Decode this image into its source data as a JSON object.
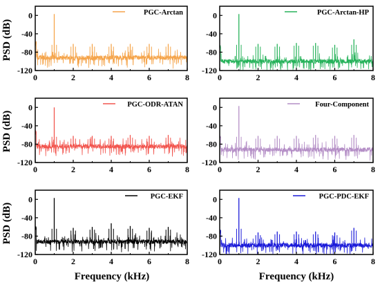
{
  "figure": {
    "ylabel": "PSD (dB)",
    "xlabel": "Frequency (kHz)"
  },
  "chart_data": [
    {
      "type": "line",
      "series": [
        {
          "name": "PGC-Arctan",
          "color": "#f5a44a"
        }
      ],
      "xlim": [
        0,
        8
      ],
      "ylim": [
        -120,
        20
      ],
      "xticks": [
        0,
        2,
        4,
        6,
        8
      ],
      "yticks": [
        0,
        -40,
        -80,
        -120
      ],
      "noise_floor": -92,
      "peaks": [
        {
          "x": 1,
          "y": 3
        },
        {
          "x": 2,
          "y": -62
        },
        {
          "x": 3,
          "y": -62
        },
        {
          "x": 4,
          "y": -62
        },
        {
          "x": 5,
          "y": -62
        },
        {
          "x": 6,
          "y": -62
        },
        {
          "x": 7,
          "y": -62
        }
      ],
      "legend": "top-right",
      "grid": false
    },
    {
      "type": "line",
      "series": [
        {
          "name": "PGC-Arctan-HP",
          "color": "#26b25a"
        }
      ],
      "xlim": [
        0,
        8
      ],
      "ylim": [
        -120,
        20
      ],
      "xticks": [
        0,
        2,
        4,
        6,
        8
      ],
      "yticks": [
        0,
        -40,
        -80,
        -120
      ],
      "noise_floor": -100,
      "peaks": [
        {
          "x": 1,
          "y": 3
        },
        {
          "x": 2,
          "y": -62
        },
        {
          "x": 3,
          "y": -62
        },
        {
          "x": 4,
          "y": -60
        },
        {
          "x": 5,
          "y": -60
        },
        {
          "x": 6,
          "y": -64
        },
        {
          "x": 7,
          "y": -52
        }
      ],
      "legend": "top-right",
      "grid": false
    },
    {
      "type": "line",
      "series": [
        {
          "name": "PGC-ODR-ATAN",
          "color": "#f2554e"
        }
      ],
      "xlim": [
        0,
        8
      ],
      "ylim": [
        -120,
        20
      ],
      "xticks": [
        0,
        2,
        4,
        6,
        8
      ],
      "yticks": [
        0,
        -40,
        -80,
        -120
      ],
      "noise_floor": -85,
      "peaks": [
        {
          "x": 1,
          "y": 0
        },
        {
          "x": 2,
          "y": -62
        },
        {
          "x": 3,
          "y": -62
        },
        {
          "x": 4,
          "y": -62
        },
        {
          "x": 5,
          "y": -60
        },
        {
          "x": 6,
          "y": -62
        },
        {
          "x": 7,
          "y": -60
        }
      ],
      "legend": "top-right",
      "grid": false
    },
    {
      "type": "line",
      "series": [
        {
          "name": "Four-Component",
          "color": "#b48ec6"
        }
      ],
      "xlim": [
        0,
        8
      ],
      "ylim": [
        -120,
        20
      ],
      "xticks": [
        0,
        2,
        4,
        6,
        8
      ],
      "yticks": [
        0,
        -40,
        -80,
        -120
      ],
      "noise_floor": -92,
      "peaks": [
        {
          "x": 1,
          "y": 3
        },
        {
          "x": 2,
          "y": -62
        },
        {
          "x": 3,
          "y": -62
        },
        {
          "x": 4,
          "y": -62
        },
        {
          "x": 5,
          "y": -60
        },
        {
          "x": 6,
          "y": -62
        },
        {
          "x": 7,
          "y": -60
        }
      ],
      "legend": "top-right",
      "grid": false
    },
    {
      "type": "line",
      "series": [
        {
          "name": "PGC-EKF",
          "color": "#000000"
        }
      ],
      "xlim": [
        0,
        8
      ],
      "ylim": [
        -120,
        20
      ],
      "xticks": [
        0,
        2,
        4,
        6,
        8
      ],
      "yticks": [
        0,
        -40,
        -80,
        -120
      ],
      "noise_floor": -92,
      "peaks": [
        {
          "x": 1,
          "y": 3
        },
        {
          "x": 2,
          "y": -62
        },
        {
          "x": 3,
          "y": -60
        },
        {
          "x": 4,
          "y": -52
        },
        {
          "x": 5,
          "y": -58
        },
        {
          "x": 6,
          "y": -62
        },
        {
          "x": 7,
          "y": -60
        }
      ],
      "legend": "top-right",
      "grid": false
    },
    {
      "type": "line",
      "series": [
        {
          "name": "PGC-PDC-EKF",
          "color": "#1a1ad9"
        }
      ],
      "xlim": [
        0,
        8
      ],
      "ylim": [
        -120,
        20
      ],
      "xticks": [
        0,
        2,
        4,
        6,
        8
      ],
      "yticks": [
        0,
        -40,
        -80,
        -120
      ],
      "noise_floor": -100,
      "peaks": [
        {
          "x": 1,
          "y": 3
        },
        {
          "x": 2,
          "y": -72
        },
        {
          "x": 3,
          "y": -70
        },
        {
          "x": 4,
          "y": -70
        },
        {
          "x": 5,
          "y": -70
        },
        {
          "x": 6,
          "y": -72
        },
        {
          "x": 7,
          "y": -62
        }
      ],
      "legend": "top-right",
      "grid": false
    }
  ]
}
